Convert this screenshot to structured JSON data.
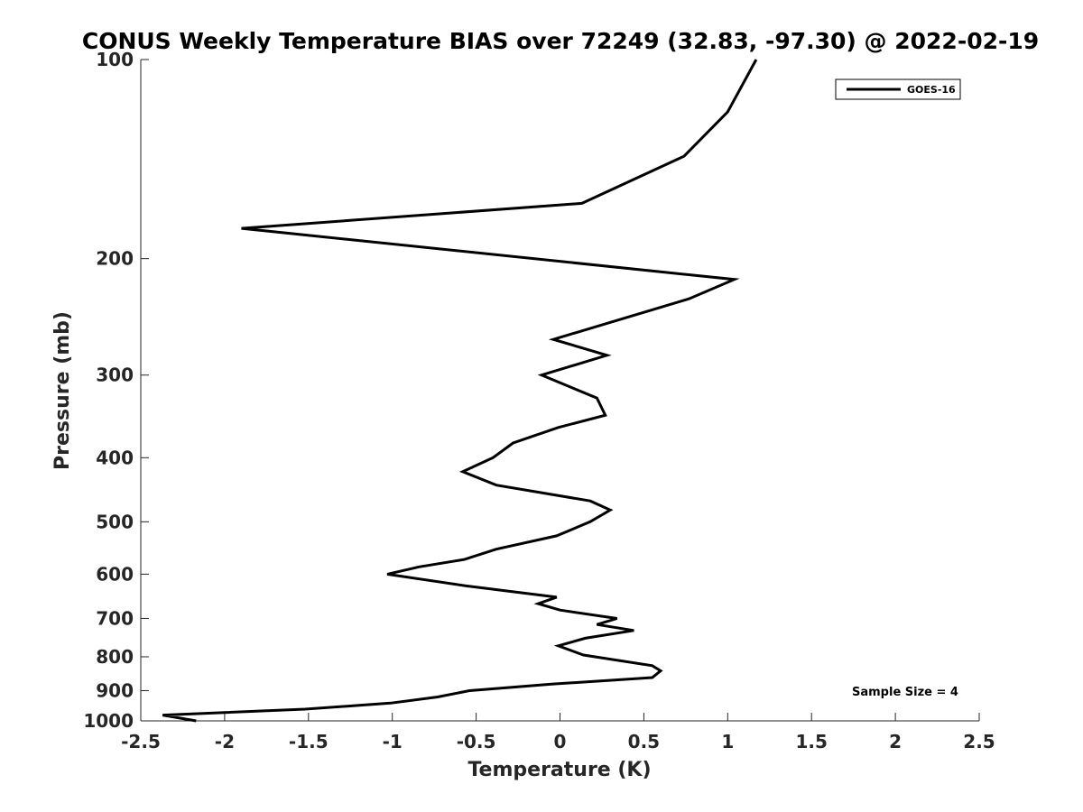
{
  "chart_data": {
    "type": "line",
    "title": "CONUS Weekly Temperature BIAS over 72249 (32.83, -97.30) @ 2022-02-19",
    "xlabel": "Temperature (K)",
    "ylabel": "Pressure (mb)",
    "xlim": [
      -2.5,
      2.5
    ],
    "ylim": [
      100,
      1000
    ],
    "y_scale": "log",
    "y_reversed": true,
    "grid": false,
    "legend_position": "top-right",
    "x_ticks": [
      "-2.5",
      "-2",
      "-1.5",
      "-1",
      "-0.5",
      "0",
      "0.5",
      "1",
      "1.5",
      "2",
      "2.5"
    ],
    "x_tick_values": [
      -2.5,
      -2,
      -1.5,
      -1,
      -0.5,
      0,
      0.5,
      1,
      1.5,
      2,
      2.5
    ],
    "y_ticks": [
      "100",
      "200",
      "300",
      "400",
      "500",
      "600",
      "700",
      "800",
      "900",
      "1000"
    ],
    "y_tick_values": [
      100,
      200,
      300,
      400,
      500,
      600,
      700,
      800,
      900,
      1000
    ],
    "annotation": "Sample Size = 4",
    "series": [
      {
        "name": "GOES-16",
        "color": "#000000",
        "points": [
          {
            "t": 1.17,
            "p": 100
          },
          {
            "t": 1.0,
            "p": 120
          },
          {
            "t": 0.74,
            "p": 140
          },
          {
            "t": 0.13,
            "p": 165
          },
          {
            "t": -1.9,
            "p": 180
          },
          {
            "t": 1.04,
            "p": 215
          },
          {
            "t": 0.77,
            "p": 230
          },
          {
            "t": -0.04,
            "p": 265
          },
          {
            "t": 0.28,
            "p": 280
          },
          {
            "t": -0.11,
            "p": 300
          },
          {
            "t": 0.22,
            "p": 325
          },
          {
            "t": 0.27,
            "p": 345
          },
          {
            "t": -0.01,
            "p": 360
          },
          {
            "t": -0.28,
            "p": 380
          },
          {
            "t": -0.4,
            "p": 400
          },
          {
            "t": -0.58,
            "p": 420
          },
          {
            "t": -0.38,
            "p": 440
          },
          {
            "t": 0.18,
            "p": 465
          },
          {
            "t": 0.3,
            "p": 480
          },
          {
            "t": 0.18,
            "p": 500
          },
          {
            "t": -0.02,
            "p": 525
          },
          {
            "t": -0.38,
            "p": 550
          },
          {
            "t": -0.57,
            "p": 570
          },
          {
            "t": -0.84,
            "p": 585
          },
          {
            "t": -1.03,
            "p": 600
          },
          {
            "t": -0.56,
            "p": 625
          },
          {
            "t": -0.02,
            "p": 650
          },
          {
            "t": -0.13,
            "p": 665
          },
          {
            "t": 0.0,
            "p": 680
          },
          {
            "t": 0.34,
            "p": 700
          },
          {
            "t": 0.22,
            "p": 715
          },
          {
            "t": 0.44,
            "p": 730
          },
          {
            "t": 0.15,
            "p": 750
          },
          {
            "t": -0.01,
            "p": 770
          },
          {
            "t": 0.14,
            "p": 795
          },
          {
            "t": 0.55,
            "p": 825
          },
          {
            "t": 0.6,
            "p": 840
          },
          {
            "t": 0.55,
            "p": 860
          },
          {
            "t": -0.05,
            "p": 880
          },
          {
            "t": -0.54,
            "p": 900
          },
          {
            "t": -0.73,
            "p": 920
          },
          {
            "t": -1.01,
            "p": 940
          },
          {
            "t": -1.52,
            "p": 960
          },
          {
            "t": -2.37,
            "p": 980
          },
          {
            "t": -2.17,
            "p": 1000
          }
        ]
      }
    ]
  }
}
